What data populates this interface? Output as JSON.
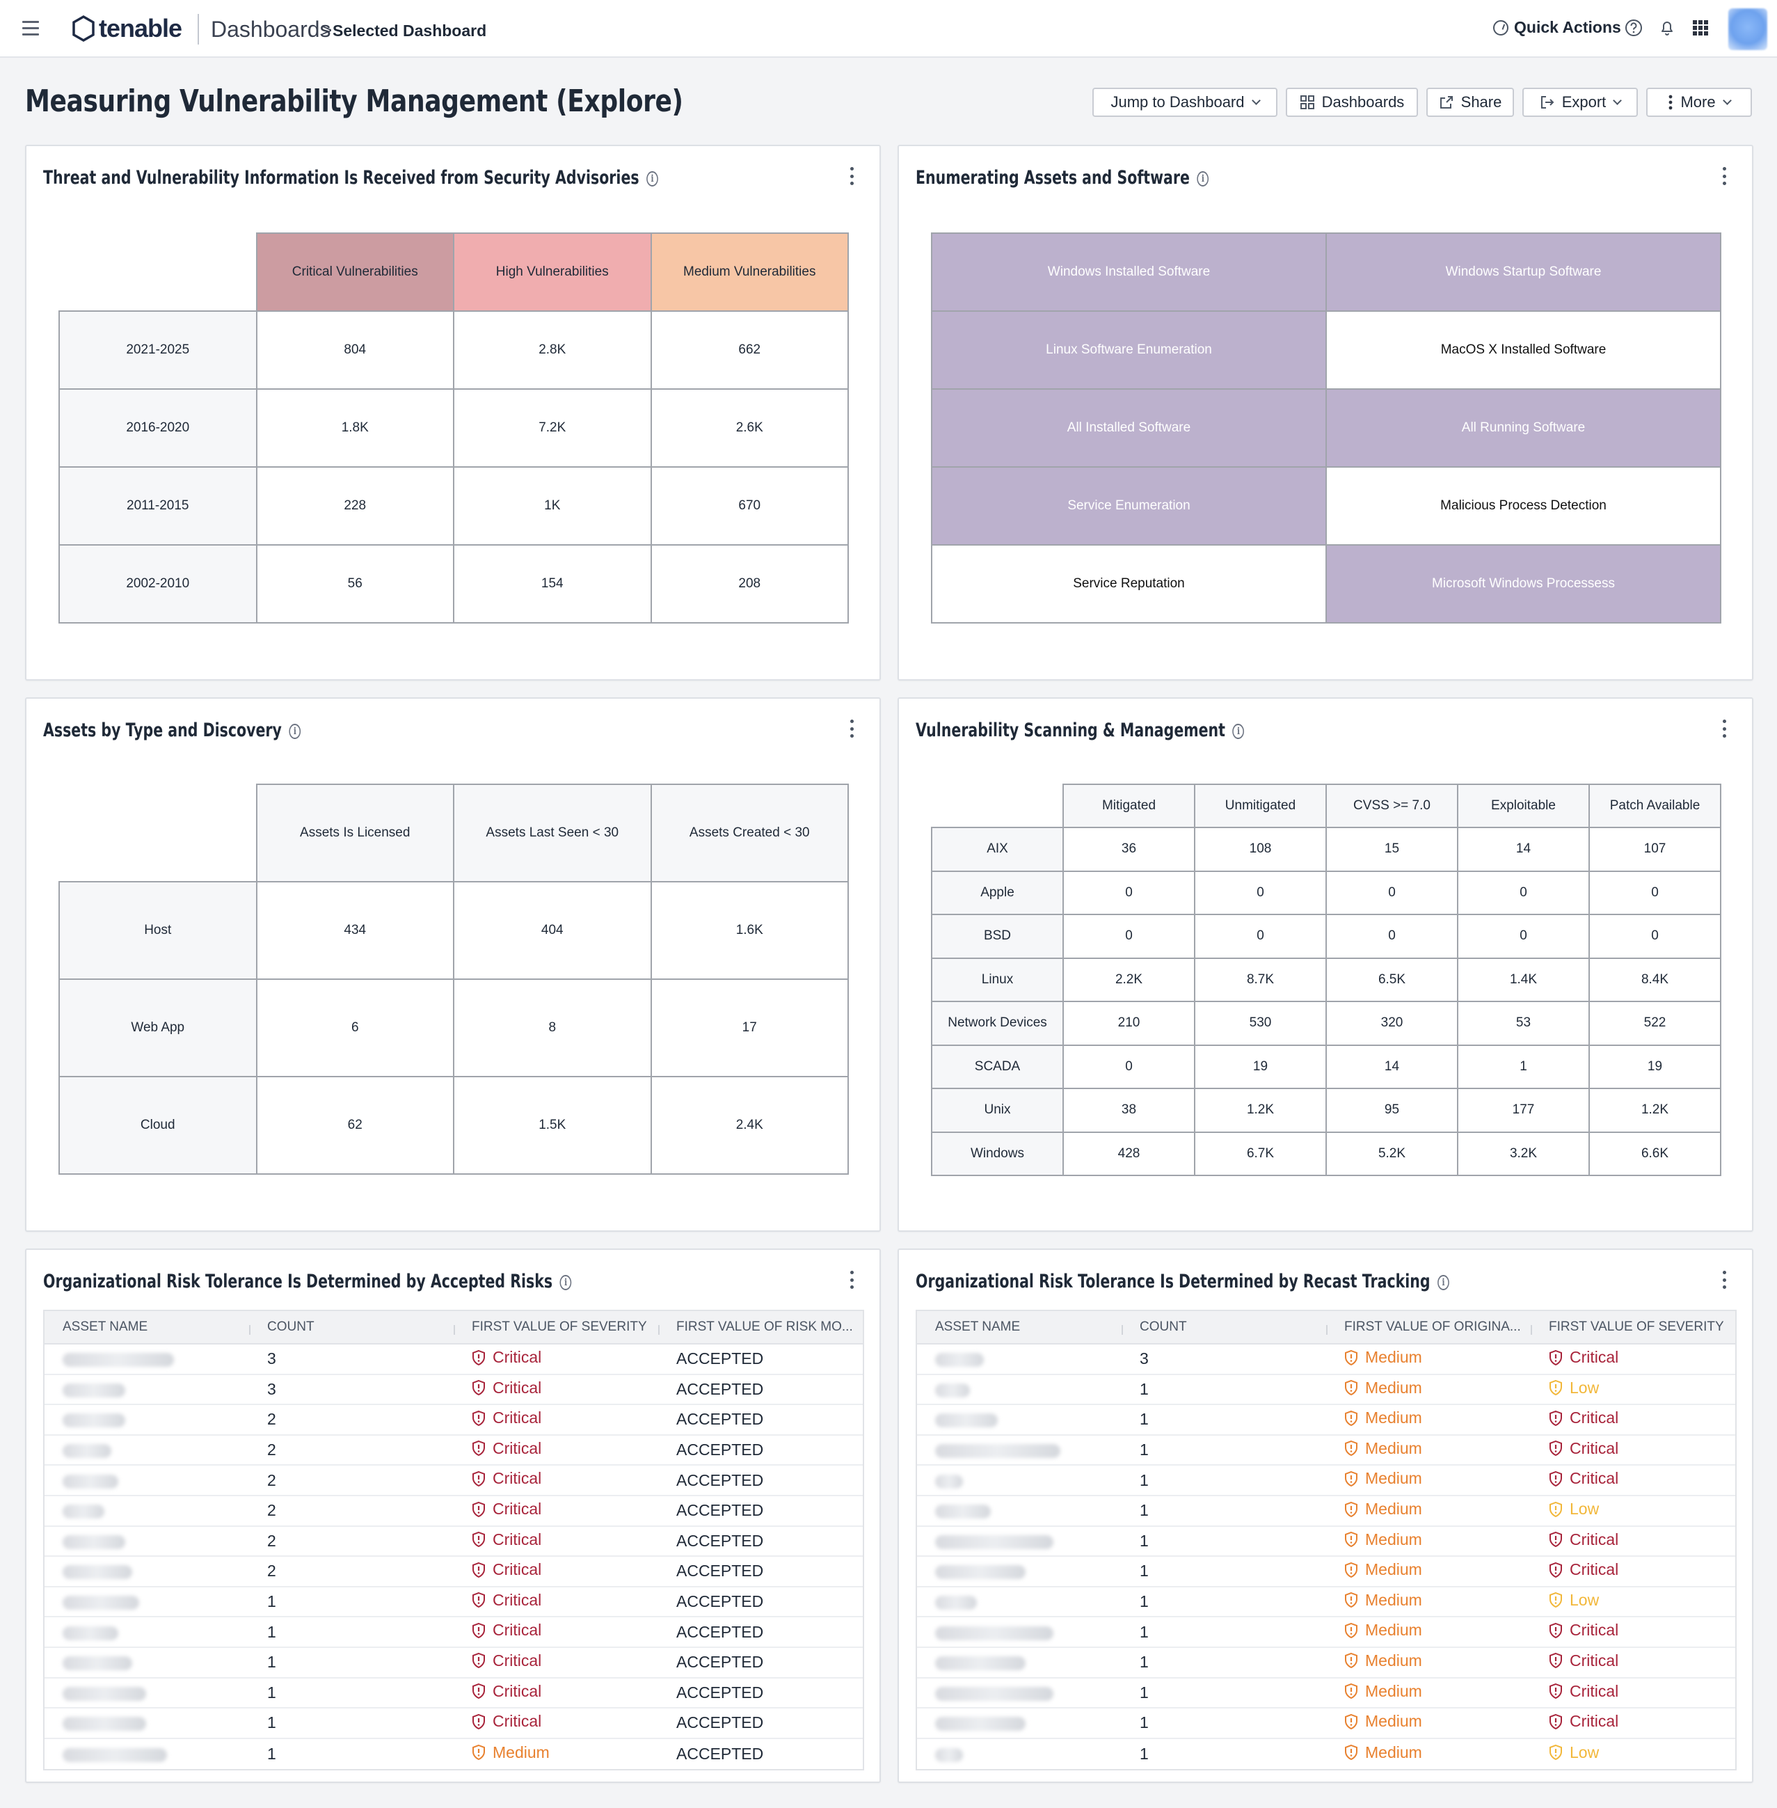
{
  "header": {
    "logo_text": "tenable",
    "breadcrumb_root": "Dashboards",
    "breadcrumb_sep": ">",
    "breadcrumb_current": "Selected Dashboard",
    "quick_actions": "Quick Actions"
  },
  "page": {
    "title": "Measuring Vulnerability Management (Explore)",
    "buttons": {
      "jump": "Jump to Dashboard",
      "dashboards": "Dashboards",
      "share": "Share",
      "export": "Export",
      "more": "More"
    }
  },
  "threat_widget": {
    "title": "Threat and Vulnerability Information Is Received from Security Advisories",
    "columns": [
      "Critical Vulnerabilities",
      "High Vulnerabilities",
      "Medium Vulnerabilities"
    ],
    "column_colors": [
      "#cc9ca1",
      "#f0adaf",
      "#f7c6a6"
    ],
    "rows": [
      {
        "label": "2021-2025",
        "values": [
          "804",
          "2.8K",
          "662"
        ]
      },
      {
        "label": "2016-2020",
        "values": [
          "1.8K",
          "7.2K",
          "2.6K"
        ]
      },
      {
        "label": "2011-2015",
        "values": [
          "228",
          "1K",
          "670"
        ]
      },
      {
        "label": "2002-2010",
        "values": [
          "56",
          "154",
          "208"
        ]
      }
    ]
  },
  "enum_widget": {
    "title": "Enumerating Assets and Software",
    "cells": [
      [
        "Windows Installed Software",
        "Windows Startup Software"
      ],
      [
        "Linux Software Enumeration",
        "MacOS X Installed Software"
      ],
      [
        "All Installed Software",
        "All Running Software"
      ],
      [
        "Service Enumeration",
        "Malicious Process Detection"
      ],
      [
        "Service Reputation",
        "Microsoft Windows Processess"
      ]
    ],
    "highlight": [
      [
        true,
        true
      ],
      [
        true,
        false
      ],
      [
        true,
        true
      ],
      [
        true,
        false
      ],
      [
        false,
        true
      ]
    ],
    "highlight_color": "#bcb1cd"
  },
  "assets_widget": {
    "title": "Assets by Type and Discovery",
    "columns": [
      "Assets Is Licensed",
      "Assets Last Seen < 30",
      "Assets Created < 30"
    ],
    "rows": [
      {
        "label": "Host",
        "values": [
          "434",
          "404",
          "1.6K"
        ]
      },
      {
        "label": "Web App",
        "values": [
          "6",
          "8",
          "17"
        ]
      },
      {
        "label": "Cloud",
        "values": [
          "62",
          "1.5K",
          "2.4K"
        ]
      }
    ]
  },
  "scan_widget": {
    "title": "Vulnerability Scanning & Management",
    "columns": [
      "Mitigated",
      "Unmitigated",
      "CVSS >= 7.0",
      "Exploitable",
      "Patch Available"
    ],
    "rows": [
      {
        "label": "AIX",
        "values": [
          "36",
          "108",
          "15",
          "14",
          "107"
        ]
      },
      {
        "label": "Apple",
        "values": [
          "0",
          "0",
          "0",
          "0",
          "0"
        ]
      },
      {
        "label": "BSD",
        "values": [
          "0",
          "0",
          "0",
          "0",
          "0"
        ]
      },
      {
        "label": "Linux",
        "values": [
          "2.2K",
          "8.7K",
          "6.5K",
          "1.4K",
          "8.4K"
        ]
      },
      {
        "label": "Network Devices",
        "values": [
          "210",
          "530",
          "320",
          "53",
          "522"
        ]
      },
      {
        "label": "SCADA",
        "values": [
          "0",
          "19",
          "14",
          "1",
          "19"
        ]
      },
      {
        "label": "Unix",
        "values": [
          "38",
          "1.2K",
          "95",
          "177",
          "1.2K"
        ]
      },
      {
        "label": "Windows",
        "values": [
          "428",
          "6.7K",
          "5.2K",
          "3.2K",
          "6.6K"
        ]
      }
    ]
  },
  "accepted_widget": {
    "title": "Organizational Risk Tolerance Is Determined by Accepted Risks",
    "columns": [
      "ASSET NAME",
      "COUNT",
      "FIRST VALUE OF SEVERITY",
      "FIRST VALUE OF RISK MO..."
    ],
    "rows": [
      {
        "count": "3",
        "severity": "Critical",
        "risk": "ACCEPTED"
      },
      {
        "count": "3",
        "severity": "Critical",
        "risk": "ACCEPTED"
      },
      {
        "count": "2",
        "severity": "Critical",
        "risk": "ACCEPTED"
      },
      {
        "count": "2",
        "severity": "Critical",
        "risk": "ACCEPTED"
      },
      {
        "count": "2",
        "severity": "Critical",
        "risk": "ACCEPTED"
      },
      {
        "count": "2",
        "severity": "Critical",
        "risk": "ACCEPTED"
      },
      {
        "count": "2",
        "severity": "Critical",
        "risk": "ACCEPTED"
      },
      {
        "count": "2",
        "severity": "Critical",
        "risk": "ACCEPTED"
      },
      {
        "count": "1",
        "severity": "Critical",
        "risk": "ACCEPTED"
      },
      {
        "count": "1",
        "severity": "Critical",
        "risk": "ACCEPTED"
      },
      {
        "count": "1",
        "severity": "Critical",
        "risk": "ACCEPTED"
      },
      {
        "count": "1",
        "severity": "Critical",
        "risk": "ACCEPTED"
      },
      {
        "count": "1",
        "severity": "Critical",
        "risk": "ACCEPTED"
      },
      {
        "count": "1",
        "severity": "Medium",
        "risk": "ACCEPTED"
      }
    ]
  },
  "recast_widget": {
    "title": "Organizational Risk Tolerance Is Determined by Recast Tracking",
    "columns": [
      "ASSET NAME",
      "COUNT",
      "FIRST VALUE OF ORIGINA...",
      "FIRST VALUE OF SEVERITY"
    ],
    "rows": [
      {
        "count": "3",
        "original": "Medium",
        "severity": "Critical"
      },
      {
        "count": "1",
        "original": "Medium",
        "severity": "Low"
      },
      {
        "count": "1",
        "original": "Medium",
        "severity": "Critical"
      },
      {
        "count": "1",
        "original": "Medium",
        "severity": "Critical"
      },
      {
        "count": "1",
        "original": "Medium",
        "severity": "Critical"
      },
      {
        "count": "1",
        "original": "Medium",
        "severity": "Low"
      },
      {
        "count": "1",
        "original": "Medium",
        "severity": "Critical"
      },
      {
        "count": "1",
        "original": "Medium",
        "severity": "Critical"
      },
      {
        "count": "1",
        "original": "Medium",
        "severity": "Low"
      },
      {
        "count": "1",
        "original": "Medium",
        "severity": "Critical"
      },
      {
        "count": "1",
        "original": "Medium",
        "severity": "Critical"
      },
      {
        "count": "1",
        "original": "Medium",
        "severity": "Critical"
      },
      {
        "count": "1",
        "original": "Medium",
        "severity": "Critical"
      },
      {
        "count": "1",
        "original": "Medium",
        "severity": "Low"
      }
    ]
  },
  "colors": {
    "critical": "#a8243b",
    "medium": "#e8812f",
    "low": "#f2b739"
  }
}
